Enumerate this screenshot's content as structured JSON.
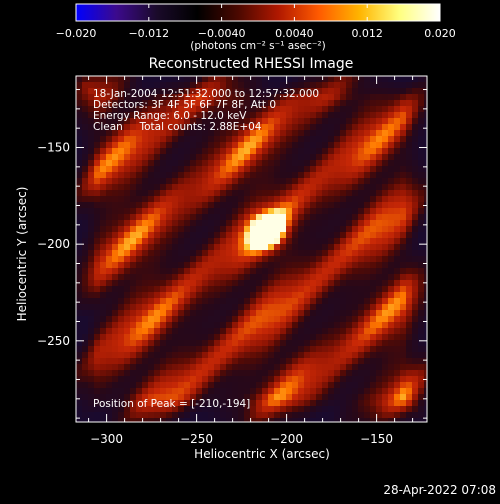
{
  "colorbar": {
    "ticks": [
      "−0.020",
      "−0.012",
      "−0.0040",
      "0.0040",
      "0.012",
      "0.020"
    ],
    "unit_label": "(photons cm⁻² s⁻¹ asec⁻²)",
    "range": [
      -0.02,
      0.02
    ]
  },
  "chart_data": {
    "type": "heatmap",
    "title": "Reconstructed RHESSI Image",
    "xlabel": "Heliocentric X (arcsec)",
    "ylabel": "Heliocentric Y (arcsec)",
    "xlim": [
      -317,
      -122
    ],
    "ylim": [
      -292,
      -113
    ],
    "x_ticks": [
      -300,
      -250,
      -200,
      -150
    ],
    "y_ticks": [
      -150,
      -200,
      -250
    ],
    "x_tick_labels": [
      "−300",
      "−250",
      "−200",
      "−150"
    ],
    "y_tick_labels": [
      "−150",
      "−200",
      "−250"
    ],
    "annotations": {
      "line1": "18-Jan-2004 12:51:32.000 to 12:57:32.000",
      "line2": "Detectors: 3F 4F 5F 6F 7F 8F, Att 0",
      "line3": "Energy Range: 6.0 - 12.0 keV",
      "line4": "Clean     Total counts: 2.88E+04",
      "peak": "Position of Peak = [-210,-194]"
    },
    "peak": {
      "x": -210,
      "y": -194
    },
    "colormap": [
      "#0000ff",
      "#3c0a8c",
      "#1a0a2a",
      "#000000",
      "#4a0800",
      "#b01800",
      "#ff5a00",
      "#ffb400",
      "#ffff80",
      "#ffffff"
    ]
  },
  "footer": {
    "timestamp": "28-Apr-2022 07:08"
  }
}
